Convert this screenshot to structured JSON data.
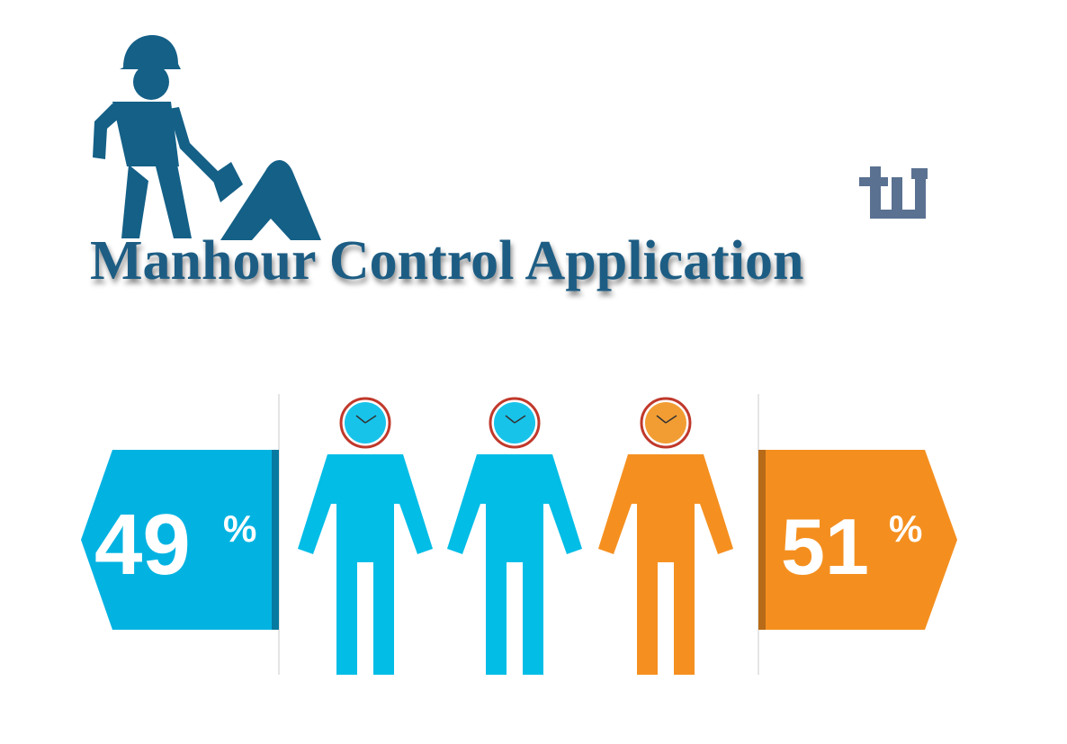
{
  "title": {
    "text": "Manhour Control Application",
    "color": "#1d5d84"
  },
  "logo": {
    "color": "#5a7191"
  },
  "worker_icon": {
    "color": "#146087"
  },
  "stats": {
    "left": {
      "value": "49",
      "unit": "%",
      "color": "#02b3e2",
      "edge_color": "#067aa0"
    },
    "right": {
      "value": "51",
      "unit": "%",
      "color": "#f48f1f",
      "edge_color": "#b76a18"
    }
  },
  "figures": [
    {
      "color": "#02bde6",
      "clock_face": "#18c3ea"
    },
    {
      "color": "#02bde6",
      "clock_face": "#18c3ea"
    },
    {
      "color": "#f59020",
      "clock_face": "#f29d33"
    }
  ]
}
